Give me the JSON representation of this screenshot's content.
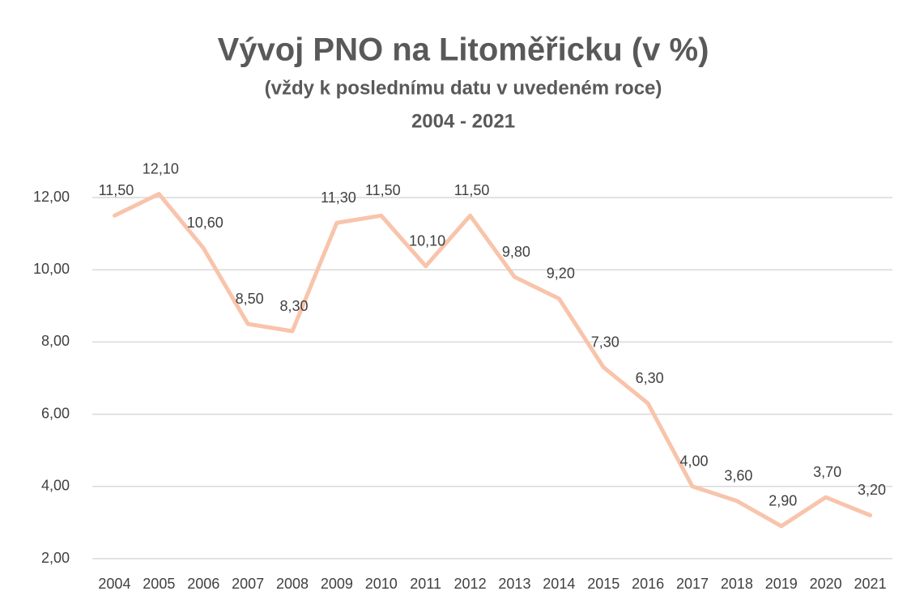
{
  "chart_data": {
    "type": "line",
    "title": "Vývoj PNO na Litoměřicku (v %)",
    "subtitle": "(vždy k poslednímu datu v uvedeném roce)",
    "period": "2004 - 2021",
    "categories": [
      "2004",
      "2005",
      "2006",
      "2007",
      "2008",
      "2009",
      "2010",
      "2011",
      "2012",
      "2013",
      "2014",
      "2015",
      "2016",
      "2017",
      "2018",
      "2019",
      "2020",
      "2021"
    ],
    "series": [
      {
        "color": "#f8c4ab",
        "values": [
          11.5,
          12.1,
          10.6,
          8.5,
          8.3,
          11.3,
          11.5,
          10.1,
          11.5,
          9.8,
          9.2,
          7.3,
          6.3,
          4.0,
          3.6,
          2.9,
          3.7,
          3.2
        ],
        "value_labels": [
          "11,50",
          "12,10",
          "10,60",
          "8,50",
          "8,30",
          "11,30",
          "11,50",
          "10,10",
          "11,50",
          "9,80",
          "9,20",
          "7,30",
          "6,30",
          "4,00",
          "3,60",
          "2,90",
          "3,70",
          "3,20"
        ]
      }
    ],
    "ylim": [
      2,
      12
    ],
    "yticks": [
      {
        "value": 2,
        "label": "2,00"
      },
      {
        "value": 4,
        "label": "4,00"
      },
      {
        "value": 6,
        "label": "6,00"
      },
      {
        "value": 8,
        "label": "8,00"
      },
      {
        "value": 10,
        "label": "10,00"
      },
      {
        "value": 12,
        "label": "12,00"
      }
    ],
    "grid": true
  }
}
